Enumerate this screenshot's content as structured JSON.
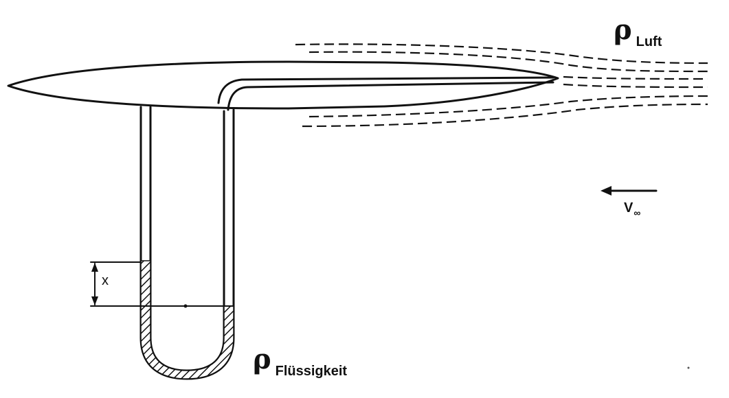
{
  "labels": {
    "rho_symbol": "ρ",
    "air_subscript": "Luft",
    "liquid_subscript": "Flüssigkeit",
    "height_label": "x",
    "velocity_symbol": "V",
    "velocity_subscript": "∞"
  },
  "colors": {
    "ink": "#111111",
    "background": "#ffffff"
  }
}
